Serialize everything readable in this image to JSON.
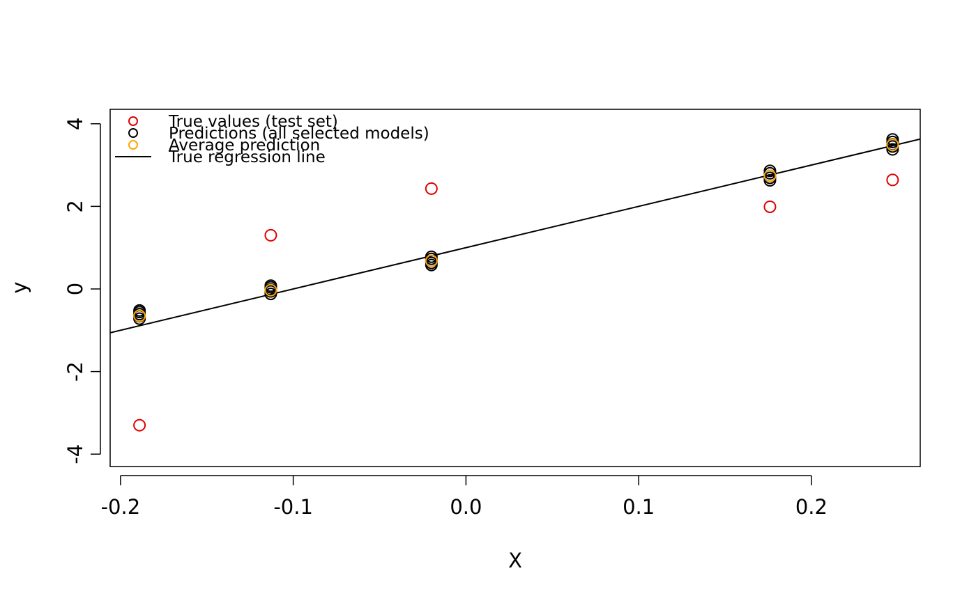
{
  "chart_data": {
    "type": "scatter",
    "title": "",
    "xlabel": "X",
    "ylabel": "y",
    "xlim": [
      -0.206,
      0.263
    ],
    "ylim": [
      -4.3,
      4.35
    ],
    "x_ticks": [
      -0.2,
      -0.1,
      0.0,
      0.1,
      0.2
    ],
    "x_tick_labels": [
      "-0.2",
      "-0.1",
      "0.0",
      "0.1",
      "0.2"
    ],
    "y_ticks": [
      -4,
      -2,
      0,
      2,
      4
    ],
    "y_tick_labels": [
      "-4",
      "-2",
      "0",
      "2",
      "4"
    ],
    "grid": false,
    "legend_position": "top-left",
    "series": [
      {
        "name": "True values (test set)",
        "kind": "points",
        "color": "#e00000",
        "x": [
          -0.189,
          -0.113,
          -0.02,
          0.176,
          0.247
        ],
        "y": [
          -3.3,
          1.3,
          2.43,
          1.99,
          2.64
        ]
      },
      {
        "name": "Predictions (all selected models)",
        "kind": "points",
        "color": "#000000",
        "x": [
          -0.189,
          -0.189,
          -0.189,
          -0.189,
          -0.189,
          -0.113,
          -0.113,
          -0.113,
          -0.113,
          -0.113,
          -0.02,
          -0.02,
          -0.02,
          -0.02,
          -0.02,
          0.176,
          0.176,
          0.176,
          0.176,
          0.176,
          0.247,
          0.247,
          0.247,
          0.247,
          0.247
        ],
        "y": [
          -0.72,
          -0.66,
          -0.61,
          -0.56,
          -0.52,
          -0.12,
          -0.06,
          -0.01,
          0.04,
          0.08,
          0.58,
          0.63,
          0.68,
          0.73,
          0.78,
          2.63,
          2.69,
          2.74,
          2.8,
          2.86,
          3.38,
          3.45,
          3.5,
          3.56,
          3.62
        ]
      },
      {
        "name": "Average prediction",
        "kind": "points",
        "color": "#ffa500",
        "x": [
          -0.189,
          -0.113,
          -0.02,
          0.176,
          0.247
        ],
        "y": [
          -0.65,
          -0.03,
          0.68,
          2.74,
          3.49
        ]
      },
      {
        "name": "True regression line",
        "kind": "line",
        "color": "#000000",
        "intercept": 1.0,
        "slope": 10.0
      }
    ]
  }
}
